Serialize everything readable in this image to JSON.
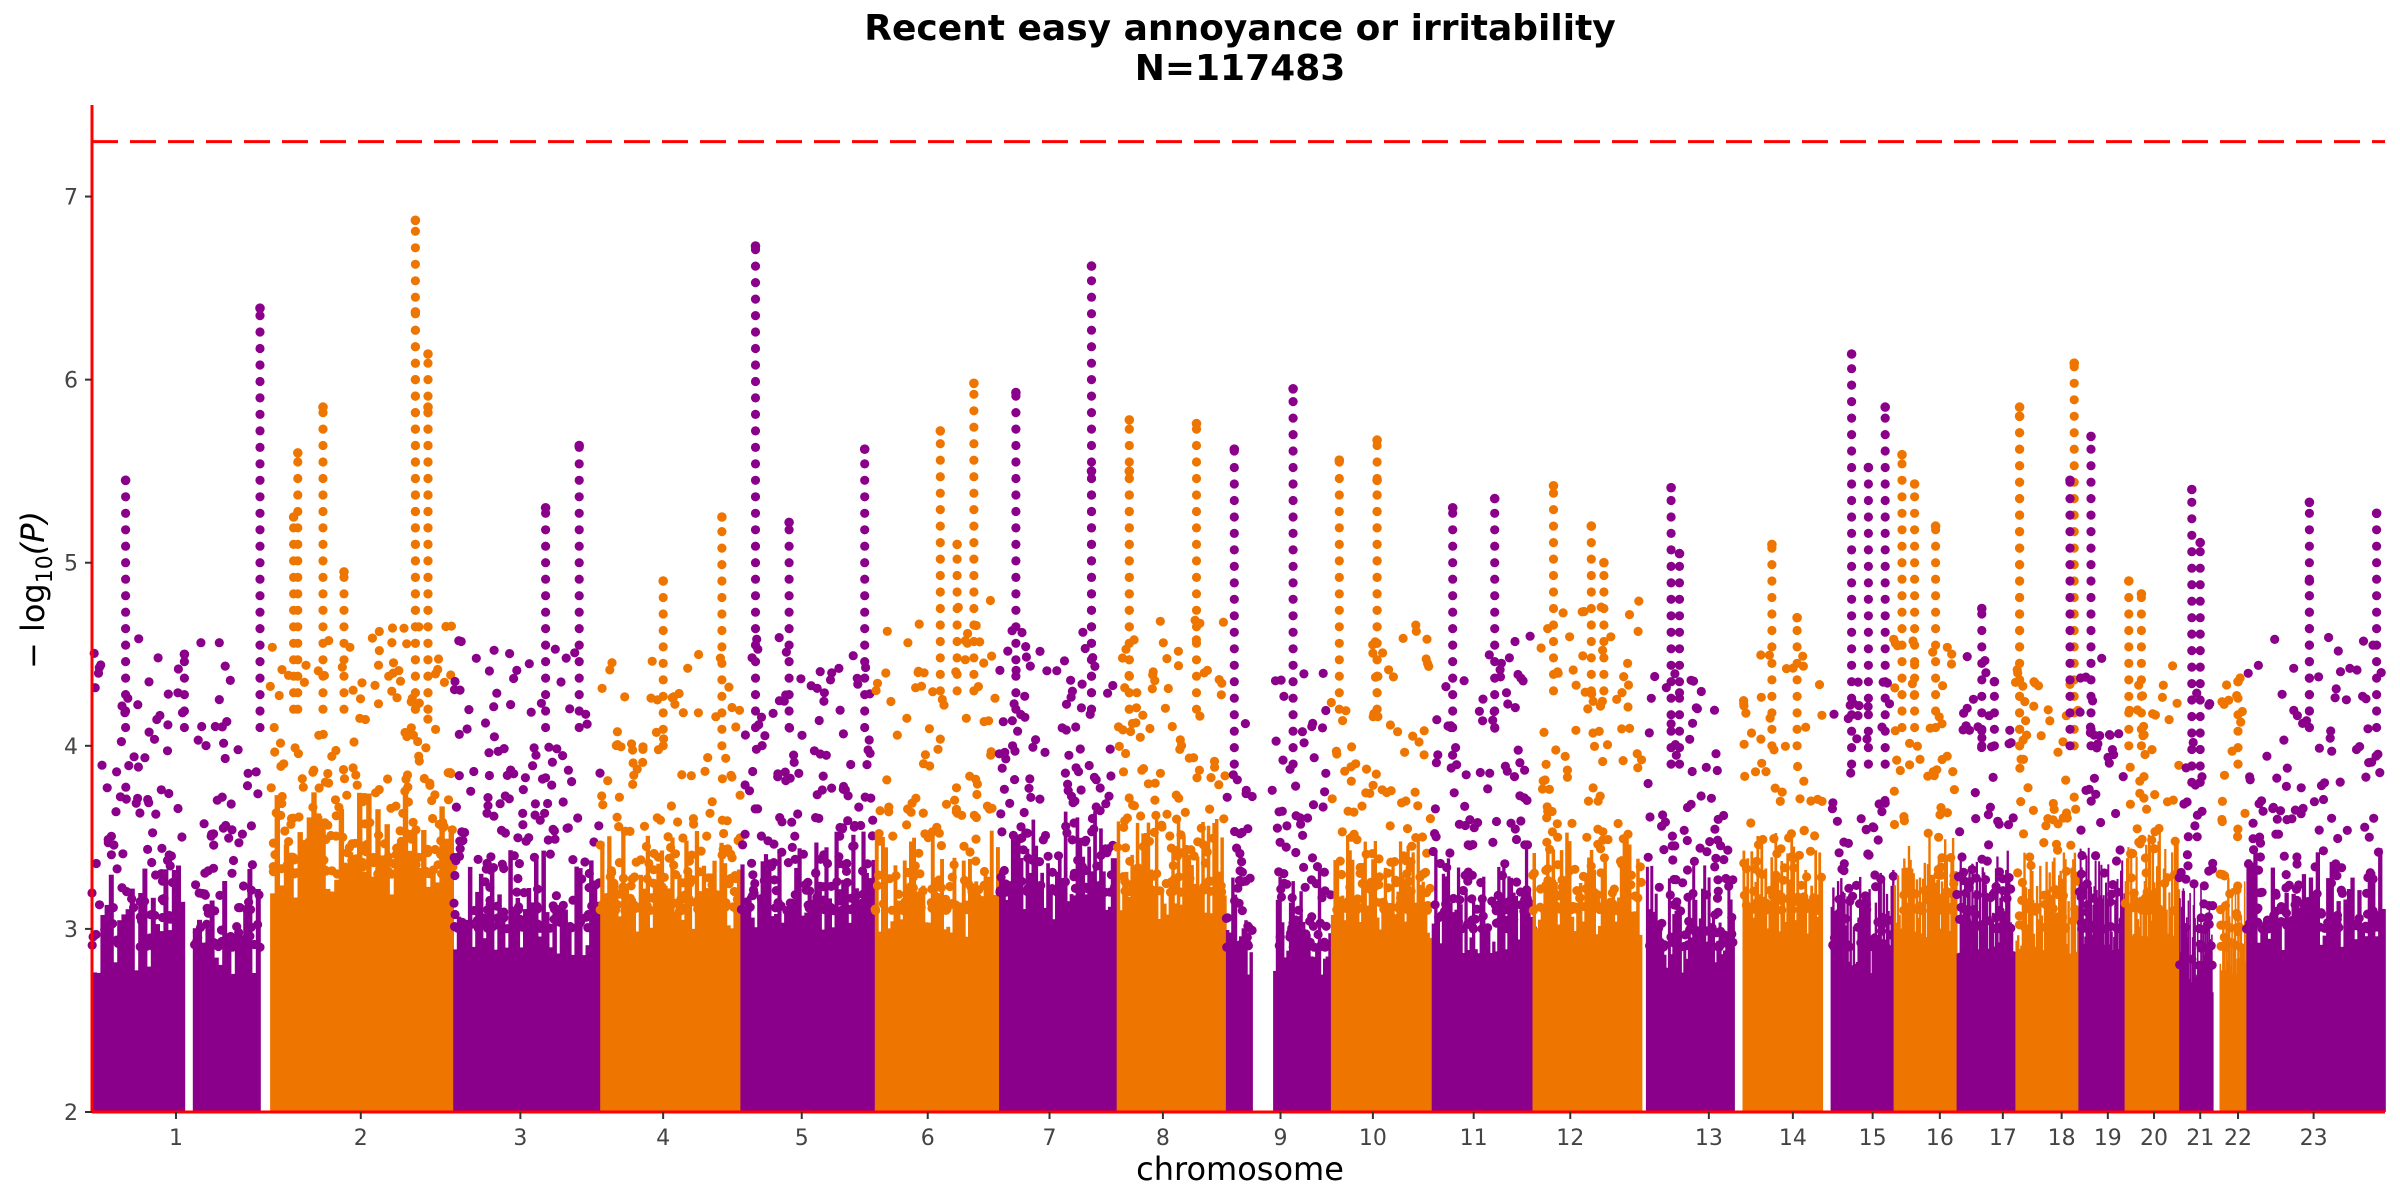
{
  "chart_data": {
    "type": "scatter",
    "subtype": "manhattan",
    "title": "Recent easy annoyance or irritability",
    "subtitle": "N=117483",
    "xlabel": "chromosome",
    "ylabel": "− log10(P)",
    "ylabel_parts": {
      "prefix": "− log",
      "sub": "10",
      "suffix": "(P)"
    },
    "ylim": [
      2,
      7.5
    ],
    "yticks": [
      2,
      3,
      4,
      5,
      6,
      7
    ],
    "significance_line": 7.3,
    "colors": {
      "odd": "#8B008B",
      "even": "#EE7600",
      "axis": "#FF0000",
      "threshold": "#FF0000"
    },
    "chromosomes": [
      {
        "label": "1",
        "tick": 1.0,
        "start": 0.0,
        "end": 2.0,
        "gaps": [
          [
            1.08,
            1.22
          ]
        ],
        "fill_top": 3.1,
        "sparse_top": 4.1,
        "tops": [
          [
            1.1,
            4.5
          ],
          [
            0.4,
            5.45
          ]
        ]
      },
      {
        "label": "2",
        "tick": 3.2,
        "start": 2.12,
        "end": 4.3,
        "gaps": [],
        "fill_top": 3.5,
        "sparse_top": 4.2,
        "tops": [
          [
            2.4,
            5.25
          ],
          [
            3.0,
            4.95
          ],
          [
            3.85,
            6.87
          ],
          [
            3.85,
            6.37
          ],
          [
            4.0,
            6.14
          ],
          [
            4.0,
            5.85
          ],
          [
            2.75,
            5.85
          ],
          [
            2.45,
            5.6
          ]
        ]
      },
      {
        "label": "3",
        "tick": 5.1,
        "start": 4.3,
        "end": 6.05,
        "gaps": [],
        "fill_top": 3.2,
        "sparse_top": 4.1,
        "tops": [
          [
            5.4,
            5.3
          ],
          [
            5.8,
            5.64
          ],
          [
            2.0,
            6.39
          ]
        ]
      },
      {
        "label": "4",
        "tick": 6.8,
        "start": 6.05,
        "end": 7.72,
        "gaps": [],
        "fill_top": 3.3,
        "sparse_top": 4.0,
        "tops": [
          [
            7.5,
            5.25
          ],
          [
            6.8,
            4.9
          ]
        ]
      },
      {
        "label": "5",
        "tick": 8.45,
        "start": 7.72,
        "end": 9.32,
        "gaps": [],
        "fill_top": 3.3,
        "sparse_top": 4.1,
        "tops": [
          [
            7.9,
            6.73
          ],
          [
            8.3,
            5.22
          ],
          [
            9.2,
            5.62
          ]
        ]
      },
      {
        "label": "6",
        "tick": 9.95,
        "start": 9.32,
        "end": 10.8,
        "gaps": [],
        "fill_top": 3.3,
        "sparse_top": 4.3,
        "tops": [
          [
            10.5,
            5.98
          ],
          [
            10.1,
            5.72
          ],
          [
            10.3,
            5.1
          ]
        ]
      },
      {
        "label": "7",
        "tick": 11.4,
        "start": 10.8,
        "end": 12.2,
        "gaps": [],
        "fill_top": 3.4,
        "sparse_top": 4.2,
        "tops": [
          [
            11.9,
            6.62
          ],
          [
            11.0,
            5.93
          ],
          [
            11.9,
            5.5
          ]
        ]
      },
      {
        "label": "8",
        "tick": 12.75,
        "start": 12.2,
        "end": 13.5,
        "gaps": [],
        "fill_top": 3.4,
        "sparse_top": 4.2,
        "tops": [
          [
            12.35,
            5.78
          ],
          [
            13.15,
            5.76
          ],
          [
            12.35,
            5.5
          ]
        ]
      },
      {
        "label": "9",
        "tick": 14.15,
        "start": 13.5,
        "end": 14.75,
        "gaps": [
          [
            13.82,
            14.05
          ]
        ],
        "fill_top": 3.1,
        "sparse_top": 3.9,
        "tops": [
          [
            14.3,
            5.95
          ],
          [
            13.6,
            5.62
          ]
        ]
      },
      {
        "label": "10",
        "tick": 15.25,
        "start": 14.75,
        "end": 15.95,
        "gaps": [],
        "fill_top": 3.3,
        "sparse_top": 4.2,
        "tops": [
          [
            15.3,
            5.67
          ],
          [
            15.3,
            5.45
          ],
          [
            14.85,
            5.56
          ]
        ]
      },
      {
        "label": "11",
        "tick": 16.45,
        "start": 15.95,
        "end": 17.15,
        "gaps": [],
        "fill_top": 3.2,
        "sparse_top": 4.1,
        "tops": [
          [
            16.7,
            5.35
          ],
          [
            16.2,
            5.3
          ]
        ]
      },
      {
        "label": "12",
        "tick": 17.6,
        "start": 17.15,
        "end": 18.45,
        "gaps": [],
        "fill_top": 3.3,
        "sparse_top": 4.3,
        "tops": [
          [
            17.4,
            5.42
          ],
          [
            17.85,
            5.2
          ],
          [
            18.0,
            5.0
          ]
        ]
      },
      {
        "label": "13",
        "tick": 19.25,
        "start": 18.5,
        "end": 19.55,
        "gaps": [],
        "fill_top": 3.1,
        "sparse_top": 3.9,
        "tops": [
          [
            18.8,
            5.41
          ],
          [
            18.9,
            5.05
          ]
        ]
      },
      {
        "label": "14",
        "tick": 20.25,
        "start": 19.65,
        "end": 20.6,
        "gaps": [],
        "fill_top": 3.3,
        "sparse_top": 4.0,
        "tops": [
          [
            20.0,
            5.1
          ],
          [
            20.3,
            4.7
          ]
        ]
      },
      {
        "label": "15",
        "tick": 21.2,
        "start": 20.7,
        "end": 21.45,
        "gaps": [],
        "fill_top": 3.1,
        "sparse_top": 3.9,
        "tops": [
          [
            20.95,
            6.14
          ],
          [
            21.35,
            5.85
          ],
          [
            21.15,
            5.52
          ]
        ]
      },
      {
        "label": "16",
        "tick": 22.0,
        "start": 21.45,
        "end": 22.2,
        "gaps": [],
        "fill_top": 3.3,
        "sparse_top": 4.1,
        "tops": [
          [
            21.55,
            5.59
          ],
          [
            21.7,
            5.43
          ],
          [
            21.95,
            5.2
          ]
        ]
      },
      {
        "label": "17",
        "tick": 22.75,
        "start": 22.2,
        "end": 22.9,
        "gaps": [],
        "fill_top": 3.2,
        "sparse_top": 4.0,
        "tops": [
          [
            22.5,
            4.75
          ],
          [
            22.65,
            4.35
          ]
        ]
      },
      {
        "label": "18",
        "tick": 23.45,
        "start": 22.9,
        "end": 23.65,
        "gaps": [],
        "fill_top": 3.2,
        "sparse_top": 4.0,
        "tops": [
          [
            22.95,
            5.85
          ],
          [
            22.95,
            5.8
          ],
          [
            23.6,
            6.09
          ]
        ]
      },
      {
        "label": "19",
        "tick": 24.0,
        "start": 23.65,
        "end": 24.2,
        "gaps": [],
        "fill_top": 3.2,
        "sparse_top": 4.0,
        "tops": [
          [
            23.8,
            5.69
          ],
          [
            23.55,
            5.45
          ]
        ]
      },
      {
        "label": "20",
        "tick": 24.55,
        "start": 24.2,
        "end": 24.85,
        "gaps": [],
        "fill_top": 3.3,
        "sparse_top": 4.0,
        "tops": [
          [
            24.25,
            4.9
          ],
          [
            24.4,
            4.83
          ]
        ]
      },
      {
        "label": "21",
        "tick": 25.1,
        "start": 24.85,
        "end": 25.25,
        "gaps": [],
        "fill_top": 3.0,
        "sparse_top": 3.8,
        "tops": [
          [
            25.0,
            5.4
          ],
          [
            25.1,
            5.11
          ]
        ]
      },
      {
        "label": "22",
        "tick": 25.55,
        "start": 25.25,
        "end": 25.65,
        "gaps": [
          [
            25.25,
            25.33
          ]
        ],
        "fill_top": 3.1,
        "sparse_top": 3.9,
        "tops": [
          [
            25.55,
            4.35
          ]
        ]
      },
      {
        "label": "23",
        "tick": 26.45,
        "start": 25.65,
        "end": 27.3,
        "gaps": [],
        "fill_top": 3.2,
        "sparse_top": 4.1,
        "tops": [
          [
            26.4,
            5.33
          ],
          [
            27.2,
            5.27
          ],
          [
            26.4,
            4.9
          ]
        ]
      }
    ]
  }
}
